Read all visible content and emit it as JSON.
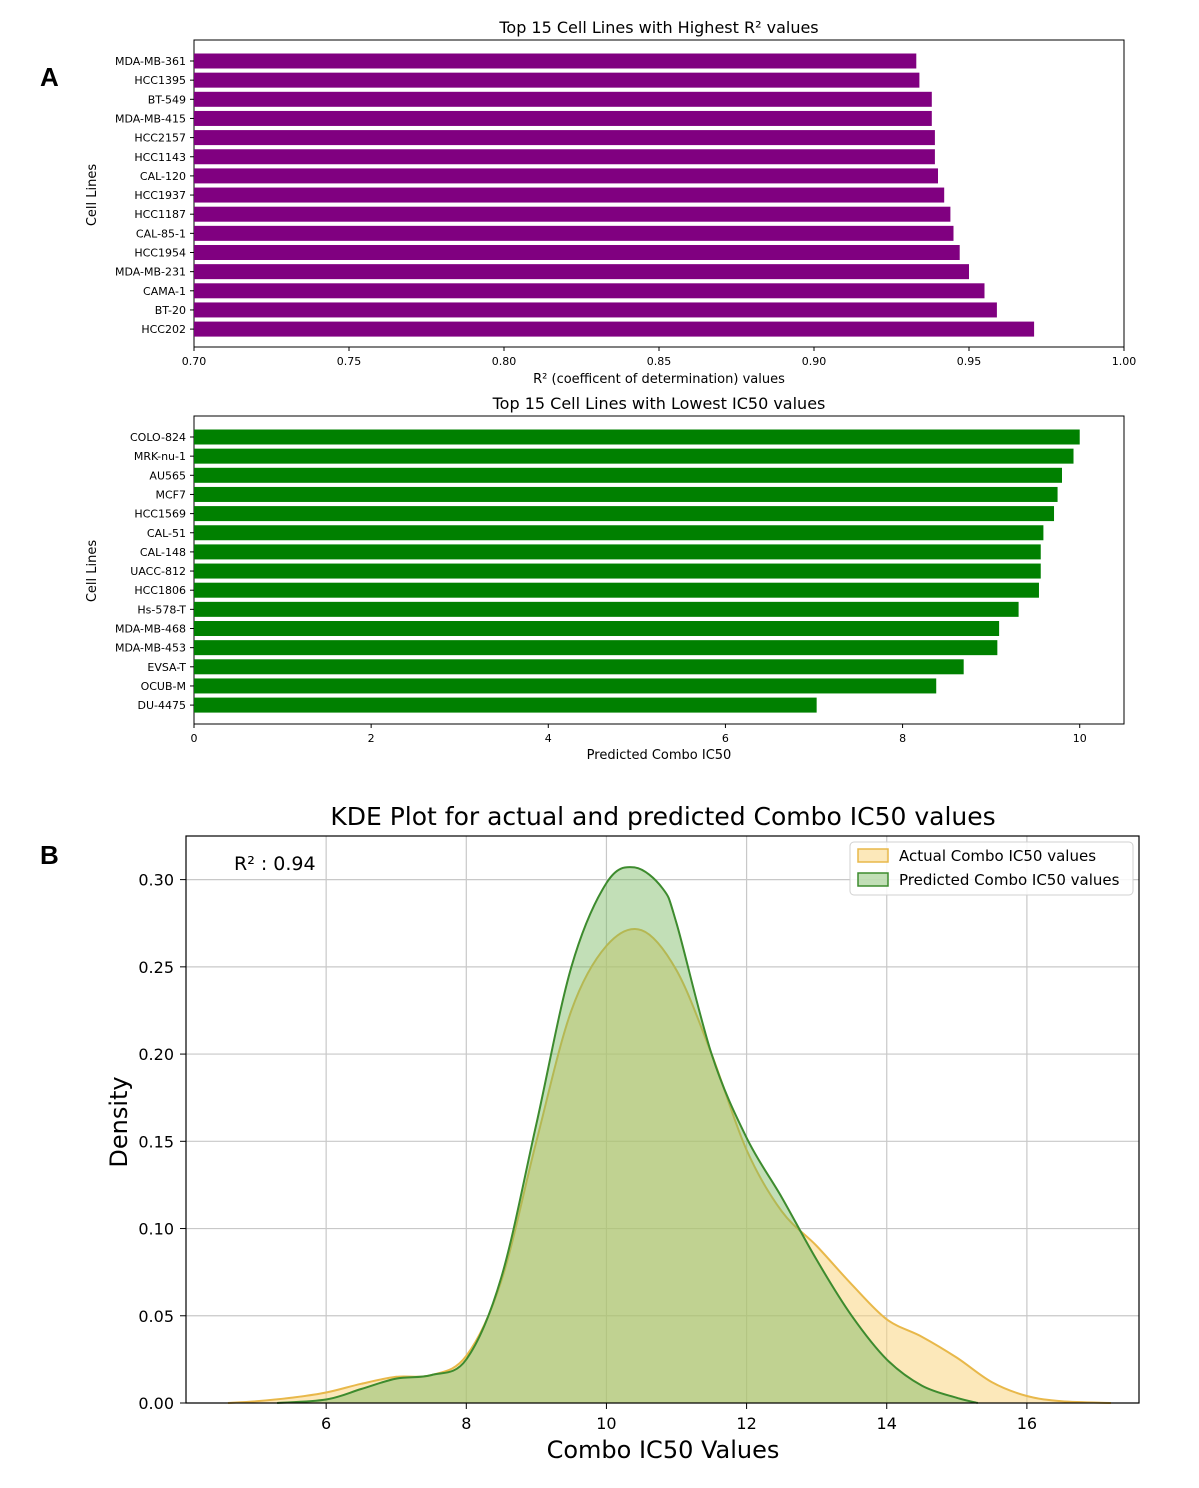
{
  "panels": {
    "a_label": "A",
    "b_label": "B"
  },
  "chart_data": [
    {
      "type": "bar",
      "orientation": "horizontal",
      "title": "Top 15 Cell Lines with Highest R² values",
      "xlabel": "R² (coefficent of determination) values",
      "ylabel": "Cell Lines",
      "xlim": [
        0.7,
        1.0
      ],
      "xticks": [
        "0.70",
        "0.75",
        "0.80",
        "0.85",
        "0.90",
        "0.95",
        "1.00"
      ],
      "color": "#800080",
      "categories": [
        "MDA-MB-361",
        "HCC1395",
        "BT-549",
        "MDA-MB-415",
        "HCC2157",
        "HCC1143",
        "CAL-120",
        "HCC1937",
        "HCC1187",
        "CAL-85-1",
        "HCC1954",
        "MDA-MB-231",
        "CAMA-1",
        "BT-20",
        "HCC202"
      ],
      "values": [
        0.933,
        0.934,
        0.938,
        0.938,
        0.939,
        0.939,
        0.94,
        0.942,
        0.944,
        0.945,
        0.947,
        0.95,
        0.955,
        0.959,
        0.971
      ]
    },
    {
      "type": "bar",
      "orientation": "horizontal",
      "title": "Top 15 Cell Lines with Lowest IC50 values",
      "xlabel": "Predicted Combo IC50",
      "ylabel": "Cell Lines",
      "xlim": [
        0,
        10.5
      ],
      "xticks": [
        "0",
        "2",
        "4",
        "6",
        "8",
        "10"
      ],
      "color": "#008000",
      "categories": [
        "COLO-824",
        "MRK-nu-1",
        "AU565",
        "MCF7",
        "HCC1569",
        "CAL-51",
        "CAL-148",
        "UACC-812",
        "HCC1806",
        "Hs-578-T",
        "MDA-MB-468",
        "MDA-MB-453",
        "EVSA-T",
        "OCUB-M",
        "DU-4475"
      ],
      "values": [
        10.0,
        9.93,
        9.8,
        9.75,
        9.71,
        9.59,
        9.56,
        9.56,
        9.54,
        9.31,
        9.09,
        9.07,
        8.69,
        8.38,
        7.03
      ]
    },
    {
      "type": "area",
      "subtype": "kde",
      "title": "KDE Plot for actual and predicted Combo IC50 values",
      "xlabel": "Combo IC50 Values",
      "ylabel": "Density",
      "xlim": [
        4.0,
        17.6
      ],
      "ylim": [
        0,
        0.325
      ],
      "xticks": [
        "6",
        "8",
        "10",
        "12",
        "14",
        "16"
      ],
      "yticks": [
        "0.00",
        "0.05",
        "0.10",
        "0.15",
        "0.20",
        "0.25",
        "0.30"
      ],
      "grid": true,
      "legend_position": "top-right",
      "annotation": "R² : 0.94",
      "series": [
        {
          "name": "Actual Combo IC50 values",
          "color": "#E8B84A",
          "x": [
            4.6,
            5.0,
            5.5,
            6.0,
            6.5,
            7.0,
            7.5,
            8.0,
            8.5,
            9.0,
            9.5,
            10.0,
            10.5,
            11.0,
            11.5,
            12.0,
            12.5,
            13.0,
            13.5,
            14.0,
            14.5,
            15.0,
            15.5,
            16.0,
            16.5,
            17.2
          ],
          "y": [
            0.0,
            0.001,
            0.003,
            0.006,
            0.011,
            0.015,
            0.016,
            0.027,
            0.07,
            0.15,
            0.225,
            0.262,
            0.271,
            0.248,
            0.2,
            0.145,
            0.11,
            0.09,
            0.068,
            0.048,
            0.038,
            0.026,
            0.012,
            0.004,
            0.001,
            0.0
          ]
        },
        {
          "name": "Predicted Combo IC50 values",
          "color": "#3D8B2E",
          "x": [
            5.3,
            6.0,
            6.5,
            7.0,
            7.5,
            8.0,
            8.5,
            9.0,
            9.5,
            10.0,
            10.4,
            10.8,
            11.0,
            11.5,
            12.0,
            12.5,
            13.0,
            13.5,
            14.0,
            14.5,
            15.0,
            15.3
          ],
          "y": [
            0.0,
            0.002,
            0.008,
            0.014,
            0.016,
            0.025,
            0.072,
            0.16,
            0.25,
            0.298,
            0.307,
            0.295,
            0.275,
            0.2,
            0.152,
            0.118,
            0.082,
            0.05,
            0.025,
            0.01,
            0.003,
            0.0
          ]
        }
      ]
    }
  ]
}
